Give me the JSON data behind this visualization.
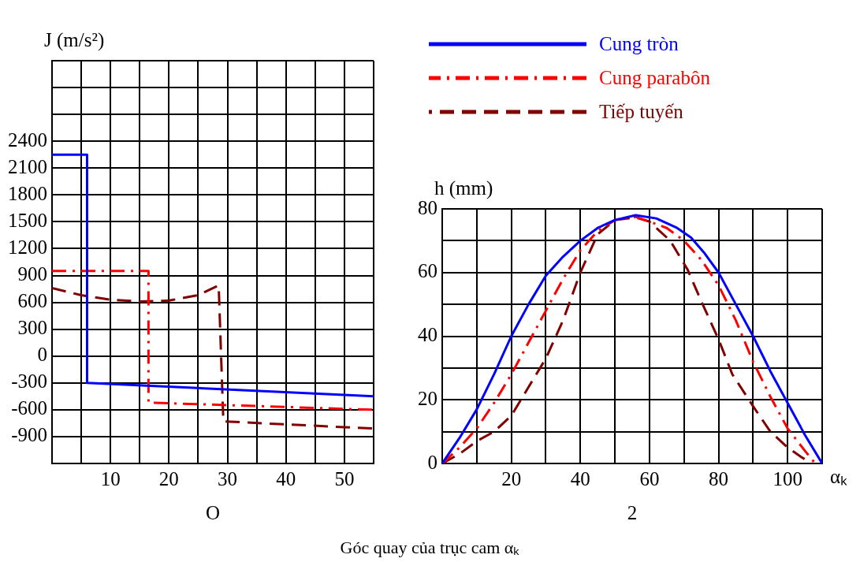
{
  "chart_data": [
    {
      "type": "line",
      "ylabel": "J (m/s²)",
      "annotations": [
        "O"
      ],
      "xlim": [
        0,
        55
      ],
      "xticks": [
        {
          "value": 0,
          "label": null
        },
        {
          "value": 5,
          "label": null
        },
        10,
        {
          "value": 15,
          "label": null
        },
        20,
        {
          "value": 25,
          "label": null
        },
        30,
        {
          "value": 35,
          "label": null
        },
        40,
        {
          "value": 45,
          "label": null
        },
        50,
        {
          "value": 55,
          "label": null
        }
      ],
      "ylim": [
        -1200,
        3300
      ],
      "yticks": [
        {
          "value": -1200,
          "label": null
        },
        -900,
        -600,
        -300,
        0,
        300,
        600,
        900,
        1200,
        1500,
        1800,
        2100,
        2400,
        {
          "value": 2700,
          "label": null
        },
        {
          "value": 3000,
          "label": null
        },
        {
          "value": 3300,
          "label": null
        }
      ],
      "grid": true,
      "marker": "none",
      "legend": false,
      "series": [
        {
          "color": "#0000ff",
          "line_style": "solid",
          "x": [
            0,
            6,
            6,
            55
          ],
          "values": [
            2250,
            2250,
            -300,
            -450
          ]
        },
        {
          "color": "#ff0000",
          "line_style": "dashdot",
          "x": [
            0,
            16.5,
            16.5,
            55
          ],
          "values": [
            950,
            950,
            -520,
            -600
          ]
        },
        {
          "color": "#800000",
          "line_style": "dashed",
          "x": [
            0,
            5,
            10,
            15,
            20,
            25,
            28.5,
            29.3,
            55
          ],
          "values": [
            760,
            680,
            630,
            610,
            620,
            680,
            790,
            -730,
            -810
          ]
        }
      ]
    },
    {
      "type": "line",
      "ylabel": "h (mm)",
      "xlabel": "αₖ",
      "annotations": [
        "2",
        "Góc quay của trục cam αₖ"
      ],
      "xlim": [
        0,
        110
      ],
      "xticks": [
        {
          "value": 0,
          "label": null
        },
        {
          "value": 10,
          "label": null
        },
        20,
        {
          "value": 30,
          "label": null
        },
        40,
        {
          "value": 50,
          "label": null
        },
        60,
        {
          "value": 70,
          "label": null
        },
        80,
        {
          "value": 90,
          "label": null
        },
        100,
        {
          "value": 110,
          "label": null
        }
      ],
      "ylim": [
        0,
        80
      ],
      "yticks": [
        0,
        {
          "value": 10,
          "label": null
        },
        20,
        {
          "value": 30,
          "label": null
        },
        40,
        {
          "value": 50,
          "label": null
        },
        60,
        {
          "value": 70,
          "label": null
        },
        80
      ],
      "grid": true,
      "marker": "none",
      "legend": "top",
      "series": [
        {
          "name": "Cung tròn",
          "color": "#0000ff",
          "line_style": "solid",
          "x": [
            0,
            5,
            10,
            15,
            20,
            25,
            30,
            35,
            40,
            45,
            50,
            56,
            62,
            68,
            72,
            76,
            80,
            85,
            90,
            95,
            100,
            105,
            110
          ],
          "values": [
            0,
            8,
            17,
            28,
            40,
            50,
            59,
            65,
            70,
            74,
            76.5,
            78,
            77,
            74,
            71,
            66,
            60,
            50,
            40,
            29,
            19,
            9,
            0
          ]
        },
        {
          "name": "Cung parabôn",
          "color": "#ff0000",
          "line_style": "dashdot",
          "x": [
            0,
            5,
            10,
            15,
            20,
            25,
            30,
            35,
            40,
            45,
            50,
            56,
            60,
            65,
            70,
            75,
            80,
            85,
            90,
            95,
            100,
            105,
            108
          ],
          "values": [
            0,
            5,
            11,
            19,
            28,
            38,
            48,
            58,
            67,
            73,
            76.5,
            77.5,
            76,
            74,
            70,
            64,
            56,
            45,
            32,
            21,
            11,
            4,
            0
          ]
        },
        {
          "name": "Tiếp tuyến",
          "color": "#800000",
          "line_style": "dashed",
          "x": [
            0,
            5,
            10,
            15,
            20,
            25,
            30,
            35,
            40,
            45,
            50,
            56,
            60,
            66,
            71,
            75,
            80,
            84,
            90,
            95,
            100,
            104,
            107
          ],
          "values": [
            0,
            3,
            7,
            10,
            15,
            24,
            33,
            45,
            60,
            72,
            76.5,
            77.3,
            76,
            70,
            61,
            51,
            39,
            28,
            18,
            10,
            5,
            2,
            0
          ]
        }
      ]
    }
  ]
}
